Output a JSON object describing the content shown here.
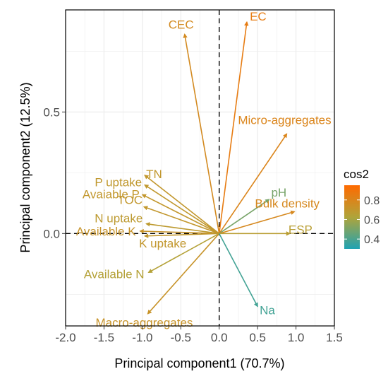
{
  "chart_data": {
    "type": "scatter",
    "subtype": "pca-biplot",
    "xlabel": "Principal component1 (70.7%)",
    "ylabel": "Principal component2 (12.5%)",
    "xlim": [
      -2.0,
      1.5
    ],
    "ylim": [
      -0.38,
      0.92
    ],
    "xticks": [
      "-2.0",
      "-1.5",
      "-1.0",
      "-0.5",
      "0.0",
      "0.5",
      "1.0",
      "1.5"
    ],
    "yticks": [
      "0.0",
      "0.5"
    ],
    "grid": true,
    "reference_lines": "dashed at x=0 and y=0",
    "legend": {
      "title": "cos2",
      "position": "right",
      "ticks": [
        "0.4",
        "0.6",
        "0.8"
      ],
      "range": [
        0.3,
        0.95
      ],
      "colors": [
        "#1fa3b3",
        "#b0a43a",
        "#ff6a00"
      ]
    },
    "variables": [
      {
        "name": "CEC",
        "x": -0.45,
        "y": 0.82,
        "cos2": 0.77
      },
      {
        "name": "EC",
        "x": 0.36,
        "y": 0.87,
        "cos2": 0.85
      },
      {
        "name": "Micro-aggregates",
        "x": 0.88,
        "y": 0.41,
        "cos2": 0.8
      },
      {
        "name": "TN",
        "x": -0.97,
        "y": 0.24,
        "cos2": 0.7
      },
      {
        "name": "P uptake",
        "x": -0.97,
        "y": 0.2,
        "cos2": 0.69
      },
      {
        "name": "Avaiable P",
        "x": -1.0,
        "y": 0.16,
        "cos2": 0.7
      },
      {
        "name": "TOC",
        "x": -0.98,
        "y": 0.11,
        "cos2": 0.7
      },
      {
        "name": "N uptake",
        "x": -0.95,
        "y": 0.04,
        "cos2": 0.68
      },
      {
        "name": "Available K",
        "x": -1.03,
        "y": 0.01,
        "cos2": 0.72
      },
      {
        "name": "K uptake",
        "x": -0.97,
        "y": -0.01,
        "cos2": 0.7
      },
      {
        "name": "pH",
        "x": 0.65,
        "y": 0.14,
        "cos2": 0.5
      },
      {
        "name": "Bulk density",
        "x": 0.98,
        "y": 0.09,
        "cos2": 0.78
      },
      {
        "name": "ESP",
        "x": 0.92,
        "y": 0.0,
        "cos2": 0.66
      },
      {
        "name": "Available N",
        "x": -0.92,
        "y": -0.16,
        "cos2": 0.64
      },
      {
        "name": "Macro-aggregates",
        "x": -0.93,
        "y": -0.33,
        "cos2": 0.72
      },
      {
        "name": "Na",
        "x": 0.5,
        "y": -0.3,
        "cos2": 0.38
      }
    ]
  }
}
